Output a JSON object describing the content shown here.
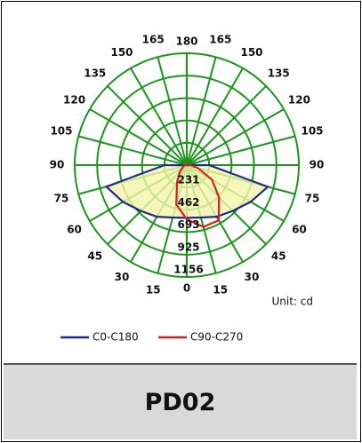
{
  "chart_data": {
    "type": "polar",
    "thetaticks": [
      0,
      15,
      30,
      45,
      60,
      75,
      90,
      105,
      120,
      135,
      150,
      165,
      180
    ],
    "rlim": [
      0,
      1156
    ],
    "rticks": [
      231,
      462,
      693,
      925,
      1156
    ],
    "theta": [
      -90,
      -75,
      -60,
      -45,
      -30,
      -15,
      0,
      15,
      30,
      45,
      60,
      75,
      90
    ],
    "series": [
      {
        "name": "C0-C180",
        "color": "#1f2a8c",
        "values": [
          230,
          860,
          760,
          670,
          615,
          560,
          545,
          560,
          615,
          670,
          760,
          865,
          230
        ]
      },
      {
        "name": "C90-C270",
        "color": "#d42020",
        "values": [
          20,
          30,
          50,
          100,
          200,
          420,
          560,
          660,
          660,
          470,
          300,
          120,
          40
        ]
      }
    ],
    "grid": true,
    "grid_color": "#1a961a",
    "unit_label": "Unit: cd",
    "legend": "bottom"
  },
  "footer": {
    "label": "PD02"
  }
}
